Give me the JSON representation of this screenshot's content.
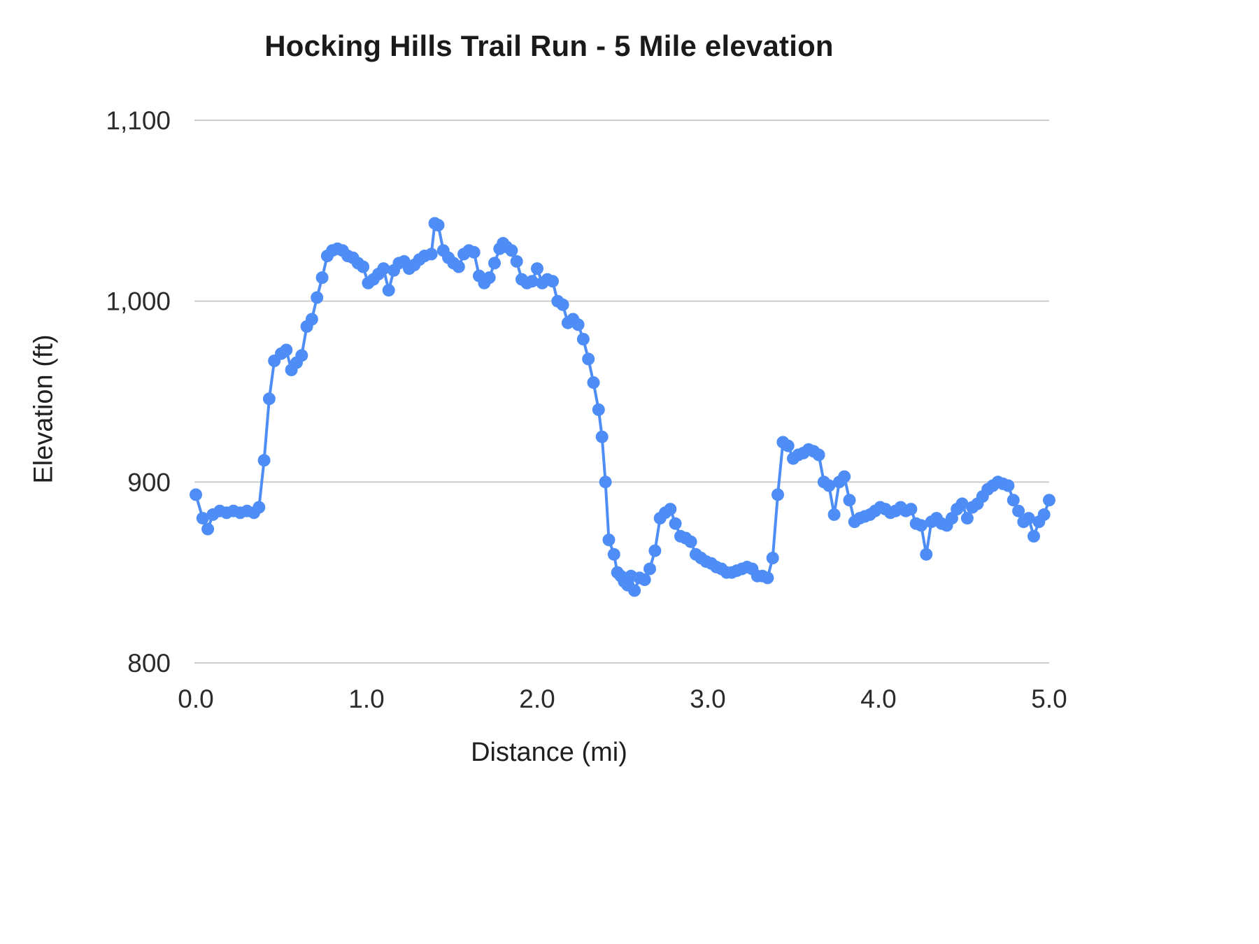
{
  "chart_data": {
    "type": "line",
    "title": "Hocking Hills Trail Run - 5 Mile elevation",
    "xlabel": "Distance (mi)",
    "ylabel": "Elevation (ft)",
    "xlim": [
      0,
      5
    ],
    "ylim": [
      800,
      1100
    ],
    "grid": true,
    "legend": "none",
    "line_color": "#4e8df6",
    "grid_color": "#cccccc",
    "marker": "circle",
    "x_ticks": [
      {
        "value": 0,
        "label": "0.0"
      },
      {
        "value": 1,
        "label": "1.0"
      },
      {
        "value": 2,
        "label": "2.0"
      },
      {
        "value": 3,
        "label": "3.0"
      },
      {
        "value": 4,
        "label": "4.0"
      },
      {
        "value": 5,
        "label": "5.0"
      }
    ],
    "y_ticks": [
      {
        "value": 800,
        "label": "800"
      },
      {
        "value": 900,
        "label": "900"
      },
      {
        "value": 1000,
        "label": "1,000"
      },
      {
        "value": 1100,
        "label": "1,100"
      }
    ],
    "series_name": "Elevation",
    "points": [
      [
        0.0,
        893
      ],
      [
        0.04,
        880
      ],
      [
        0.07,
        874
      ],
      [
        0.1,
        882
      ],
      [
        0.14,
        884
      ],
      [
        0.18,
        883
      ],
      [
        0.22,
        884
      ],
      [
        0.26,
        883
      ],
      [
        0.3,
        884
      ],
      [
        0.34,
        883
      ],
      [
        0.37,
        886
      ],
      [
        0.4,
        912
      ],
      [
        0.43,
        946
      ],
      [
        0.46,
        967
      ],
      [
        0.5,
        971
      ],
      [
        0.53,
        973
      ],
      [
        0.56,
        962
      ],
      [
        0.59,
        966
      ],
      [
        0.62,
        970
      ],
      [
        0.65,
        986
      ],
      [
        0.68,
        990
      ],
      [
        0.71,
        1002
      ],
      [
        0.74,
        1013
      ],
      [
        0.77,
        1025
      ],
      [
        0.8,
        1028
      ],
      [
        0.83,
        1029
      ],
      [
        0.86,
        1028
      ],
      [
        0.89,
        1025
      ],
      [
        0.92,
        1024
      ],
      [
        0.95,
        1021
      ],
      [
        0.98,
        1019
      ],
      [
        1.01,
        1010
      ],
      [
        1.04,
        1012
      ],
      [
        1.07,
        1015
      ],
      [
        1.1,
        1018
      ],
      [
        1.13,
        1006
      ],
      [
        1.16,
        1017
      ],
      [
        1.19,
        1021
      ],
      [
        1.22,
        1022
      ],
      [
        1.25,
        1018
      ],
      [
        1.28,
        1020
      ],
      [
        1.31,
        1023
      ],
      [
        1.34,
        1025
      ],
      [
        1.38,
        1026
      ],
      [
        1.4,
        1043
      ],
      [
        1.42,
        1042
      ],
      [
        1.45,
        1028
      ],
      [
        1.48,
        1024
      ],
      [
        1.51,
        1021
      ],
      [
        1.54,
        1019
      ],
      [
        1.57,
        1026
      ],
      [
        1.6,
        1028
      ],
      [
        1.63,
        1027
      ],
      [
        1.66,
        1014
      ],
      [
        1.69,
        1010
      ],
      [
        1.72,
        1013
      ],
      [
        1.75,
        1021
      ],
      [
        1.78,
        1029
      ],
      [
        1.8,
        1032
      ],
      [
        1.82,
        1030
      ],
      [
        1.85,
        1028
      ],
      [
        1.88,
        1022
      ],
      [
        1.91,
        1012
      ],
      [
        1.94,
        1010
      ],
      [
        1.97,
        1011
      ],
      [
        2.0,
        1018
      ],
      [
        2.03,
        1010
      ],
      [
        2.06,
        1012
      ],
      [
        2.09,
        1011
      ],
      [
        2.12,
        1000
      ],
      [
        2.15,
        998
      ],
      [
        2.18,
        988
      ],
      [
        2.21,
        990
      ],
      [
        2.24,
        987
      ],
      [
        2.27,
        979
      ],
      [
        2.3,
        968
      ],
      [
        2.33,
        955
      ],
      [
        2.36,
        940
      ],
      [
        2.38,
        925
      ],
      [
        2.4,
        900
      ],
      [
        2.42,
        868
      ],
      [
        2.45,
        860
      ],
      [
        2.47,
        850
      ],
      [
        2.49,
        848
      ],
      [
        2.51,
        845
      ],
      [
        2.53,
        843
      ],
      [
        2.55,
        848
      ],
      [
        2.57,
        840
      ],
      [
        2.6,
        847
      ],
      [
        2.63,
        846
      ],
      [
        2.66,
        852
      ],
      [
        2.69,
        862
      ],
      [
        2.72,
        880
      ],
      [
        2.75,
        883
      ],
      [
        2.78,
        885
      ],
      [
        2.81,
        877
      ],
      [
        2.84,
        870
      ],
      [
        2.87,
        869
      ],
      [
        2.9,
        867
      ],
      [
        2.93,
        860
      ],
      [
        2.96,
        858
      ],
      [
        2.99,
        856
      ],
      [
        3.02,
        855
      ],
      [
        3.05,
        853
      ],
      [
        3.08,
        852
      ],
      [
        3.11,
        850
      ],
      [
        3.14,
        850
      ],
      [
        3.17,
        851
      ],
      [
        3.2,
        852
      ],
      [
        3.23,
        853
      ],
      [
        3.26,
        852
      ],
      [
        3.29,
        848
      ],
      [
        3.32,
        848
      ],
      [
        3.35,
        847
      ],
      [
        3.38,
        858
      ],
      [
        3.41,
        893
      ],
      [
        3.44,
        922
      ],
      [
        3.47,
        920
      ],
      [
        3.5,
        913
      ],
      [
        3.53,
        915
      ],
      [
        3.56,
        916
      ],
      [
        3.59,
        918
      ],
      [
        3.62,
        917
      ],
      [
        3.65,
        915
      ],
      [
        3.68,
        900
      ],
      [
        3.71,
        898
      ],
      [
        3.74,
        882
      ],
      [
        3.77,
        900
      ],
      [
        3.8,
        903
      ],
      [
        3.83,
        890
      ],
      [
        3.86,
        878
      ],
      [
        3.89,
        880
      ],
      [
        3.92,
        881
      ],
      [
        3.95,
        882
      ],
      [
        3.98,
        884
      ],
      [
        4.01,
        886
      ],
      [
        4.04,
        885
      ],
      [
        4.07,
        883
      ],
      [
        4.1,
        884
      ],
      [
        4.13,
        886
      ],
      [
        4.16,
        884
      ],
      [
        4.19,
        885
      ],
      [
        4.22,
        877
      ],
      [
        4.25,
        876
      ],
      [
        4.28,
        860
      ],
      [
        4.31,
        878
      ],
      [
        4.34,
        880
      ],
      [
        4.37,
        877
      ],
      [
        4.4,
        876
      ],
      [
        4.43,
        880
      ],
      [
        4.46,
        885
      ],
      [
        4.49,
        888
      ],
      [
        4.52,
        880
      ],
      [
        4.55,
        886
      ],
      [
        4.58,
        888
      ],
      [
        4.61,
        892
      ],
      [
        4.64,
        896
      ],
      [
        4.67,
        898
      ],
      [
        4.7,
        900
      ],
      [
        4.73,
        899
      ],
      [
        4.76,
        898
      ],
      [
        4.79,
        890
      ],
      [
        4.82,
        884
      ],
      [
        4.85,
        878
      ],
      [
        4.88,
        880
      ],
      [
        4.91,
        870
      ],
      [
        4.94,
        878
      ],
      [
        4.97,
        882
      ],
      [
        5.0,
        890
      ]
    ]
  }
}
